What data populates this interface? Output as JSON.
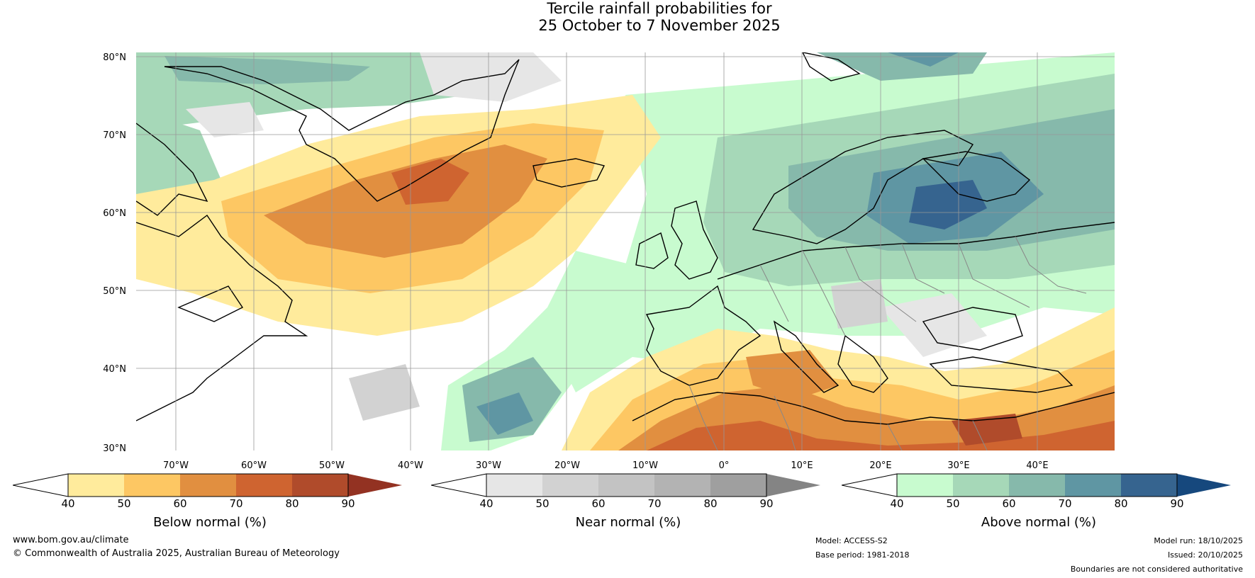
{
  "title": {
    "line1": "Tercile rainfall probabilities for",
    "line2": "25 October to 7 November 2025"
  },
  "map": {
    "lat_labels": [
      "80°N",
      "70°N",
      "60°N",
      "50°N",
      "40°N",
      "30°N"
    ],
    "lon_labels": [
      "70°W",
      "60°W",
      "50°W",
      "40°W",
      "30°W",
      "20°W",
      "10°W",
      "0°",
      "10°E",
      "20°E",
      "30°E",
      "40°E"
    ],
    "gridline_color": "#999999",
    "coastline_color": "#000000",
    "border_color": "#888888"
  },
  "colorbars": [
    {
      "name": "below-normal",
      "label": "Below normal (%)",
      "ticks": [
        "40",
        "50",
        "60",
        "70",
        "80",
        "90"
      ],
      "colors": [
        "#ffeb9c",
        "#fdc763",
        "#e18f40",
        "#cf6430",
        "#b04b2b",
        "#933222"
      ]
    },
    {
      "name": "near-normal",
      "label": "Near normal (%)",
      "ticks": [
        "40",
        "50",
        "60",
        "70",
        "80",
        "90"
      ],
      "colors": [
        "#e6e6e6",
        "#d2d2d2",
        "#c3c3c3",
        "#b3b3b3",
        "#9f9f9f",
        "#848484"
      ]
    },
    {
      "name": "above-normal",
      "label": "Above normal (%)",
      "ticks": [
        "40",
        "50",
        "60",
        "70",
        "80",
        "90"
      ],
      "colors": [
        "#c8fbcf",
        "#a6d8b8",
        "#86b9ab",
        "#5f96a3",
        "#36648f",
        "#16487d"
      ]
    }
  ],
  "footer": {
    "website": "www.bom.gov.au/climate",
    "copyright": "© Commonwealth of Australia 2025, Australian Bureau of Meteorology",
    "model": "Model: ACCESS-S2",
    "base_period": "Base period: 1981-2018",
    "model_run": "Model run: 18/10/2025",
    "issued": "Issued: 20/10/2025",
    "disclaimer": "Boundaries are not considered authoritative"
  }
}
